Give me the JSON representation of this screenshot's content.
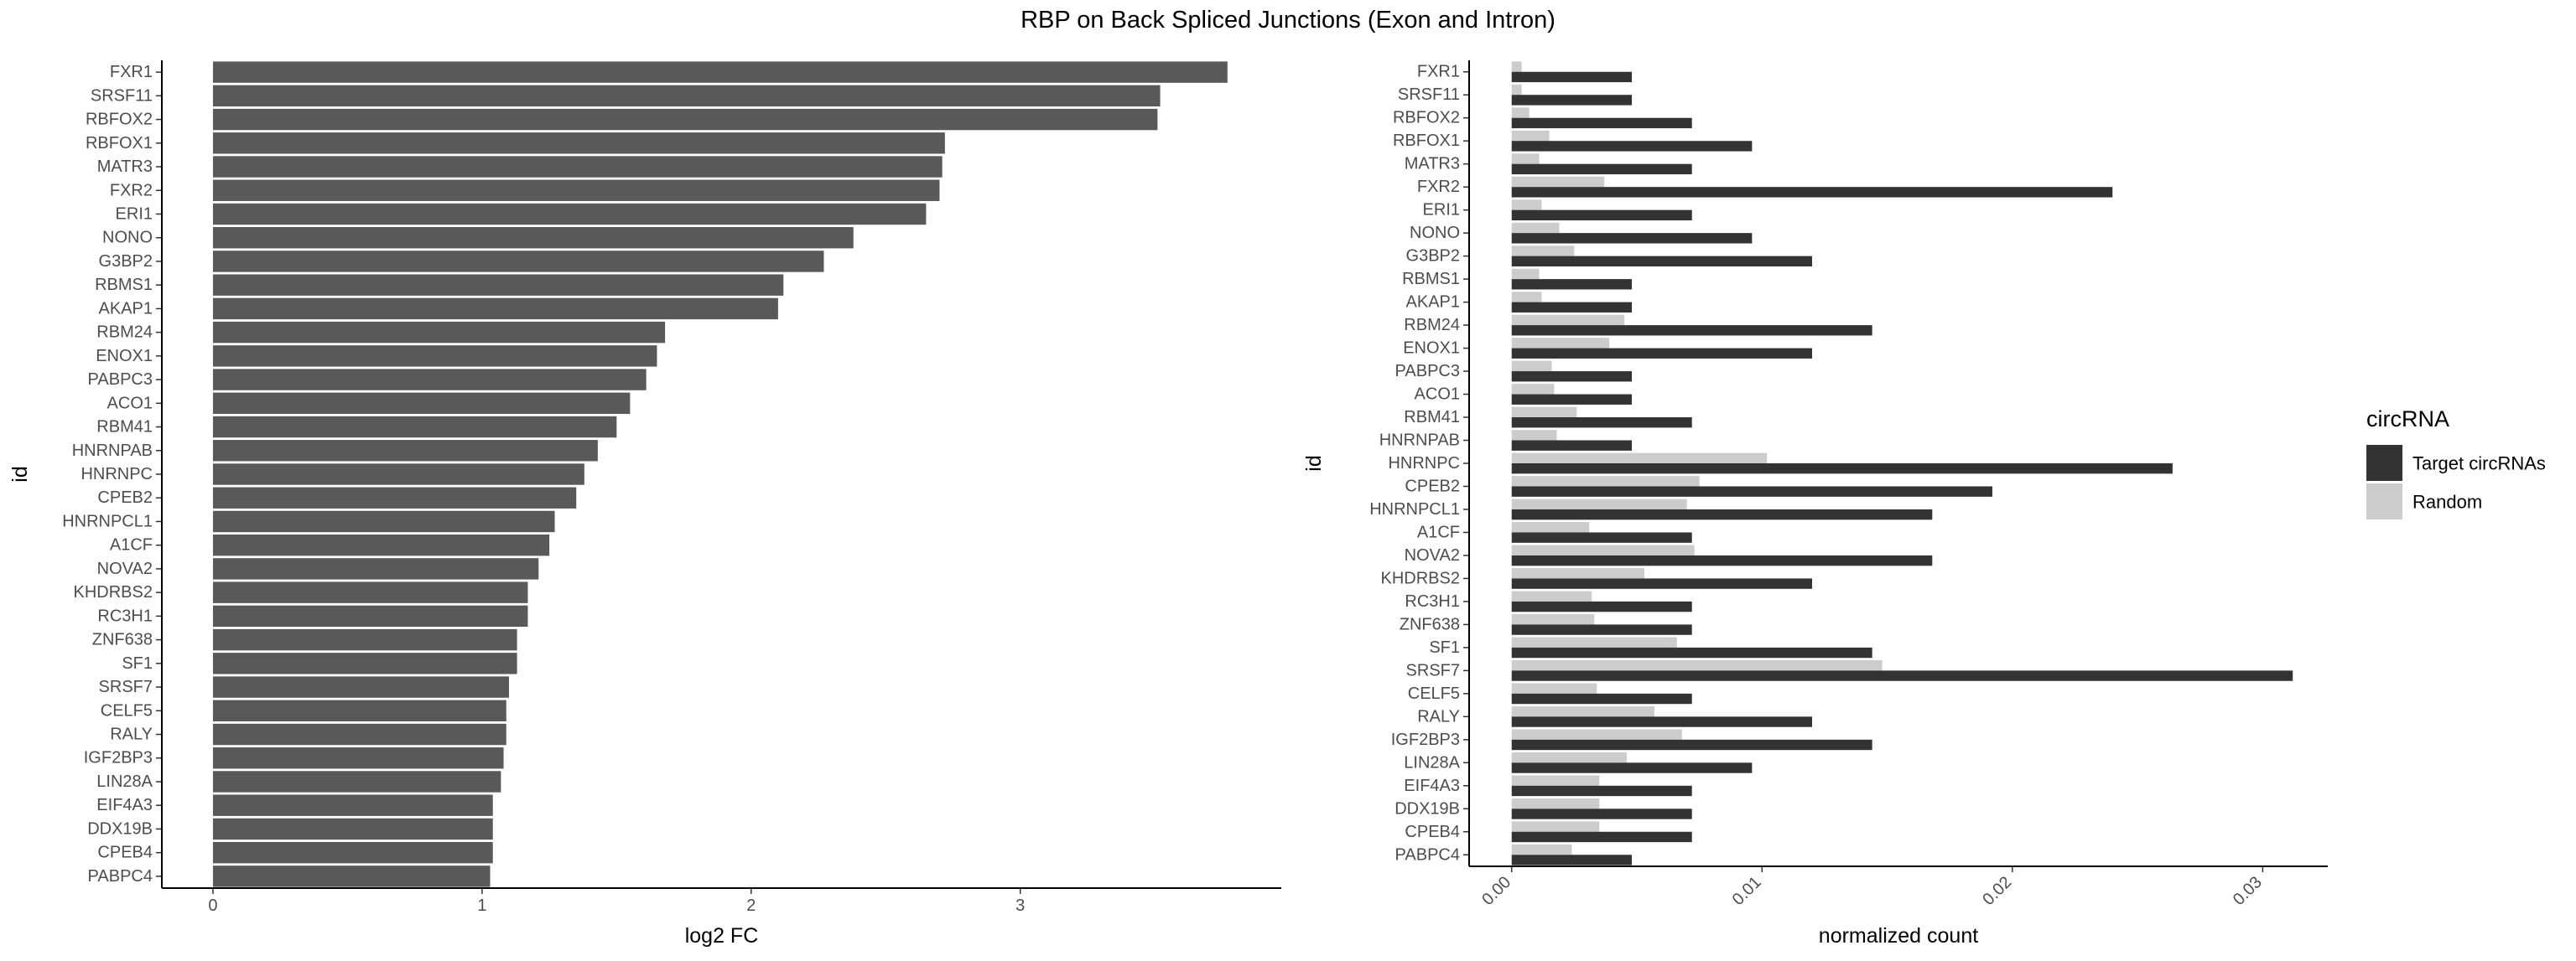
{
  "title": "RBP on Back Spliced Junctions (Exon and Intron)",
  "chart_data": [
    {
      "type": "bar",
      "orientation": "horizontal",
      "xlabel": "log2 FC",
      "ylabel": "id",
      "xlim": [
        -0.19,
        3.97
      ],
      "xticks": [
        0,
        1,
        2,
        3
      ],
      "grid": false,
      "bar_color": "#595959",
      "categories": [
        "FXR1",
        "SRSF11",
        "RBFOX2",
        "RBFOX1",
        "MATR3",
        "FXR2",
        "ERI1",
        "NONO",
        "G3BP2",
        "RBMS1",
        "AKAP1",
        "RBM24",
        "ENOX1",
        "PABPC3",
        "ACO1",
        "RBM41",
        "HNRNPAB",
        "HNRNPC",
        "CPEB2",
        "HNRNPCL1",
        "A1CF",
        "NOVA2",
        "KHDRBS2",
        "RC3H1",
        "ZNF638",
        "SF1",
        "SRSF7",
        "CELF5",
        "RALY",
        "IGF2BP3",
        "LIN28A",
        "EIF4A3",
        "DDX19B",
        "CPEB4",
        "PABPC4"
      ],
      "values": [
        3.77,
        3.52,
        3.51,
        2.72,
        2.71,
        2.7,
        2.65,
        2.38,
        2.27,
        2.12,
        2.1,
        1.68,
        1.65,
        1.61,
        1.55,
        1.5,
        1.43,
        1.38,
        1.35,
        1.27,
        1.25,
        1.21,
        1.17,
        1.17,
        1.13,
        1.13,
        1.1,
        1.09,
        1.09,
        1.08,
        1.07,
        1.04,
        1.04,
        1.04,
        1.03
      ]
    },
    {
      "type": "bar",
      "orientation": "horizontal",
      "grouped": true,
      "xlabel": "normalized count",
      "ylabel": "id",
      "xlim": [
        -0.0017,
        0.0326
      ],
      "xticks": [
        0.0,
        0.01,
        0.02,
        0.03
      ],
      "xtick_labels": [
        "0.00",
        "0.01",
        "0.02",
        "0.03"
      ],
      "grid": false,
      "legend": {
        "title": "circRNA",
        "position": "right"
      },
      "categories": [
        "FXR1",
        "SRSF11",
        "RBFOX2",
        "RBFOX1",
        "MATR3",
        "FXR2",
        "ERI1",
        "NONO",
        "G3BP2",
        "RBMS1",
        "AKAP1",
        "RBM24",
        "ENOX1",
        "PABPC3",
        "ACO1",
        "RBM41",
        "HNRNPAB",
        "HNRNPC",
        "CPEB2",
        "HNRNPCL1",
        "A1CF",
        "NOVA2",
        "KHDRBS2",
        "RC3H1",
        "ZNF638",
        "SF1",
        "SRSF7",
        "CELF5",
        "RALY",
        "IGF2BP3",
        "LIN28A",
        "EIF4A3",
        "DDX19B",
        "CPEB4",
        "PABPC4"
      ],
      "series": [
        {
          "name": "Target circRNAs",
          "color": "#333333",
          "values": [
            0.0048,
            0.0048,
            0.0072,
            0.0096,
            0.0072,
            0.024,
            0.0072,
            0.0096,
            0.012,
            0.0048,
            0.0048,
            0.0144,
            0.012,
            0.0048,
            0.0048,
            0.0072,
            0.0048,
            0.0264,
            0.0192,
            0.0168,
            0.0072,
            0.0168,
            0.012,
            0.0072,
            0.0072,
            0.0144,
            0.0312,
            0.0072,
            0.012,
            0.0144,
            0.0096,
            0.0072,
            0.0072,
            0.0072,
            0.0048
          ]
        },
        {
          "name": "Random",
          "color": "#cccccc",
          "values": [
            0.0004,
            0.0004,
            0.0007,
            0.0015,
            0.0011,
            0.0037,
            0.0012,
            0.0019,
            0.0025,
            0.0011,
            0.0012,
            0.0045,
            0.0039,
            0.0016,
            0.0017,
            0.0026,
            0.0018,
            0.0102,
            0.0075,
            0.007,
            0.0031,
            0.0073,
            0.0053,
            0.0032,
            0.0033,
            0.0066,
            0.0148,
            0.0034,
            0.0057,
            0.0068,
            0.0046,
            0.0035,
            0.0035,
            0.0035,
            0.0024
          ]
        }
      ]
    }
  ]
}
